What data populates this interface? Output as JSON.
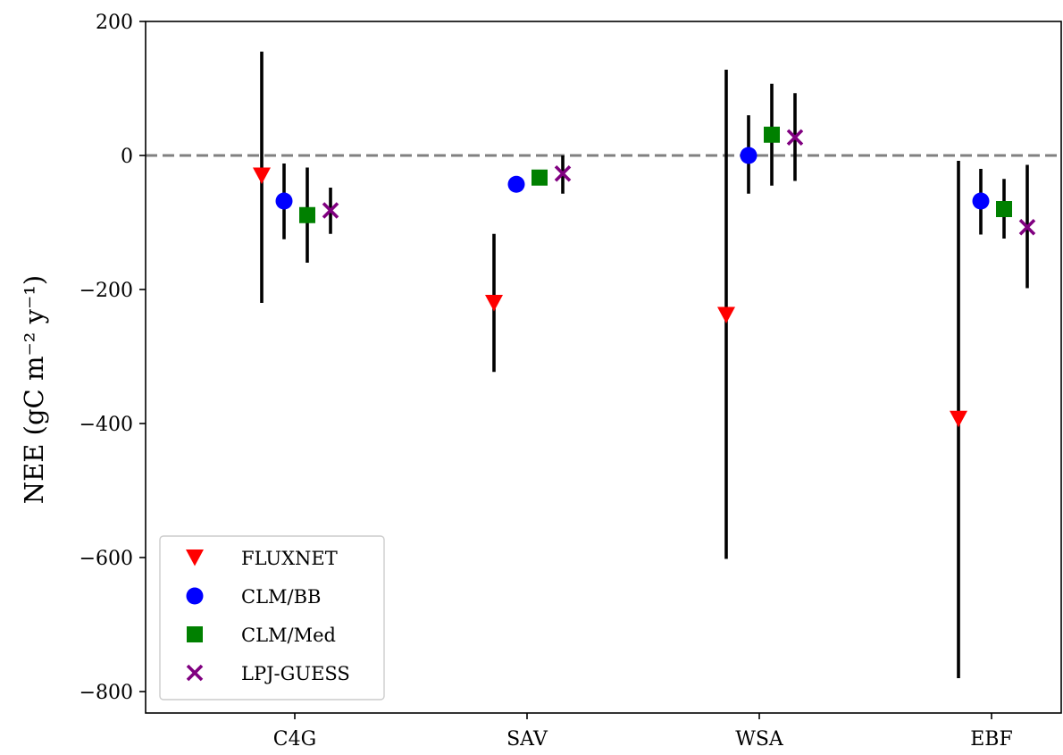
{
  "chart_data": {
    "type": "scatter",
    "title": "",
    "xlabel": "",
    "ylabel": "NEE (gC m⁻² y⁻¹)",
    "categories": [
      "C4G",
      "SAV",
      "WSA",
      "EBF"
    ],
    "ylim": [
      -830,
      200
    ],
    "yticks": [
      200,
      0,
      -200,
      -400,
      -600,
      -800
    ],
    "ytick_labels": [
      "200",
      "0",
      "−200",
      "−400",
      "−600",
      "−800"
    ],
    "reference_line": {
      "y": 0,
      "style": "dashed",
      "color": "#808080"
    },
    "errorbar_color": "#000000",
    "legend_position": "lower-left",
    "grid": false,
    "series": [
      {
        "name": "FLUXNET",
        "marker": "triangle-down",
        "color": "#ff0000",
        "values": [
          -30,
          -220,
          -238,
          -393
        ],
        "lower": [
          -220,
          -323,
          -602,
          -780
        ],
        "upper": [
          155,
          -117,
          128,
          -8
        ]
      },
      {
        "name": "CLM/BB",
        "marker": "circle",
        "color": "#0000ff",
        "values": [
          -68,
          -43,
          0,
          -68
        ],
        "lower": [
          -125,
          -43,
          -57,
          -118
        ],
        "upper": [
          -12,
          -43,
          60,
          -20
        ]
      },
      {
        "name": "CLM/Med",
        "marker": "square",
        "color": "#008000",
        "values": [
          -89,
          -33,
          31,
          -80
        ],
        "lower": [
          -160,
          -33,
          -45,
          -124
        ],
        "upper": [
          -18,
          -33,
          107,
          -35
        ]
      },
      {
        "name": "LPJ-GUESS",
        "marker": "x",
        "color": "#800080",
        "values": [
          -82,
          -27,
          27,
          -107
        ],
        "lower": [
          -117,
          -57,
          -38,
          -198
        ],
        "upper": [
          -48,
          0,
          93,
          -14
        ]
      }
    ]
  }
}
